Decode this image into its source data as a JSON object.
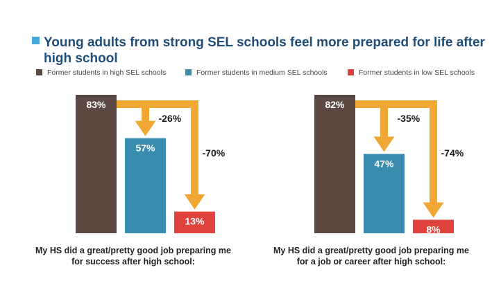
{
  "title": "Young adults from strong SEL schools feel more prepared for life after high school",
  "colors": {
    "high": "#5c4a42",
    "medium": "#3a8caf",
    "low": "#e0433d",
    "arrow": "#f0a733",
    "title": "#1f4e79",
    "title_square": "#44a8d9"
  },
  "legend": [
    {
      "label": "Former students in high SEL schools",
      "color": "#5c4a42"
    },
    {
      "label": "Former students in medium SEL schools",
      "color": "#3a8caf"
    },
    {
      "label": "Former students in low SEL schools",
      "color": "#e0433d"
    }
  ],
  "chart_data": [
    {
      "type": "bar",
      "title": "",
      "caption": "My HS did a great/pretty good job preparing me for success after high school:",
      "categories": [
        "Former students in high SEL schools",
        "Former students in medium SEL schools",
        "Former students in low SEL schools"
      ],
      "values": [
        83,
        57,
        13
      ],
      "value_labels": [
        "83%",
        "57%",
        "13%"
      ],
      "annotations": [
        "-26%",
        "-70%"
      ],
      "ylim": [
        0,
        83
      ],
      "grid": false
    },
    {
      "type": "bar",
      "title": "",
      "caption": "My HS did a great/pretty good job preparing me for a job or career after high school:",
      "categories": [
        "Former students in high SEL schools",
        "Former students in medium SEL schools",
        "Former students in low SEL schools"
      ],
      "values": [
        82,
        47,
        8
      ],
      "value_labels": [
        "82%",
        "47%",
        "8%"
      ],
      "annotations": [
        "-35%",
        "-74%"
      ],
      "ylim": [
        0,
        82
      ],
      "grid": false
    }
  ]
}
